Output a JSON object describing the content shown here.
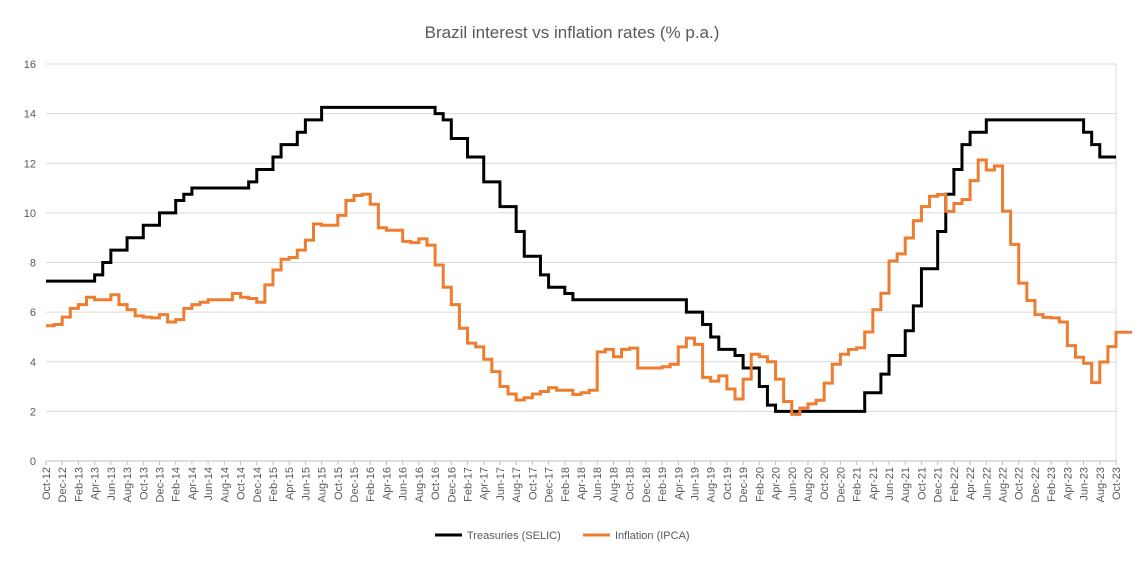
{
  "chart_data": {
    "type": "line",
    "step": true,
    "title": "Brazil interest vs inflation rates (% p.a.)",
    "xlabel": "",
    "ylabel": "",
    "ylim": [
      0,
      16
    ],
    "yticks": [
      0,
      2,
      4,
      6,
      8,
      10,
      12,
      14,
      16
    ],
    "grid": true,
    "legend_position": "bottom-center",
    "x_start": "Oct-12",
    "x_end": "Oct-23",
    "x_tick_labels": [
      "Oct-12",
      "Dec-12",
      "Feb-13",
      "Apr-13",
      "Jun-13",
      "Aug-13",
      "Oct-13",
      "Dec-13",
      "Feb-14",
      "Apr-14",
      "Jun-14",
      "Aug-14",
      "Oct-14",
      "Dec-14",
      "Feb-15",
      "Apr-15",
      "Jun-15",
      "Aug-15",
      "Oct-15",
      "Dec-15",
      "Feb-16",
      "Apr-16",
      "Jun-16",
      "Aug-16",
      "Oct-16",
      "Dec-16",
      "Feb-17",
      "Apr-17",
      "Jun-17",
      "Aug-17",
      "Oct-17",
      "Dec-17",
      "Feb-18",
      "Apr-18",
      "Jun-18",
      "Aug-18",
      "Oct-18",
      "Dec-18",
      "Feb-19",
      "Apr-19",
      "Jun-19",
      "Aug-19",
      "Oct-19",
      "Dec-19",
      "Feb-20",
      "Apr-20",
      "Jun-20",
      "Aug-20",
      "Oct-20",
      "Dec-20",
      "Feb-21",
      "Apr-21",
      "Jun-21",
      "Aug-21",
      "Oct-21",
      "Dec-21",
      "Feb-22",
      "Apr-22",
      "Jun-22",
      "Aug-22",
      "Oct-22",
      "Dec-22",
      "Feb-23",
      "Apr-23",
      "Jun-23",
      "Aug-23",
      "Oct-23"
    ],
    "series": [
      {
        "name": "Treasuries (SELIC)",
        "color": "#000000",
        "points": [
          [
            0,
            7.25
          ],
          [
            6,
            7.5
          ],
          [
            7,
            8.0
          ],
          [
            8,
            8.5
          ],
          [
            10,
            9.0
          ],
          [
            12,
            9.5
          ],
          [
            14,
            10.0
          ],
          [
            16,
            10.5
          ],
          [
            17,
            10.75
          ],
          [
            18,
            11.0
          ],
          [
            25,
            11.25
          ],
          [
            26,
            11.75
          ],
          [
            28,
            12.25
          ],
          [
            29,
            12.75
          ],
          [
            31,
            13.25
          ],
          [
            32,
            13.75
          ],
          [
            34,
            14.25
          ],
          [
            48,
            14.0
          ],
          [
            49,
            13.75
          ],
          [
            50,
            13.0
          ],
          [
            52,
            12.25
          ],
          [
            54,
            11.25
          ],
          [
            56,
            10.25
          ],
          [
            58,
            9.25
          ],
          [
            59,
            8.25
          ],
          [
            61,
            7.5
          ],
          [
            62,
            7.0
          ],
          [
            64,
            6.75
          ],
          [
            65,
            6.5
          ],
          [
            79,
            6.0
          ],
          [
            81,
            5.5
          ],
          [
            82,
            5.0
          ],
          [
            83,
            4.5
          ],
          [
            85,
            4.25
          ],
          [
            86,
            3.75
          ],
          [
            88,
            3.0
          ],
          [
            89,
            2.25
          ],
          [
            90,
            2.0
          ],
          [
            101,
            2.75
          ],
          [
            103,
            3.5
          ],
          [
            104,
            4.25
          ],
          [
            106,
            5.25
          ],
          [
            107,
            6.25
          ],
          [
            108,
            7.75
          ],
          [
            110,
            9.25
          ],
          [
            111,
            10.75
          ],
          [
            112,
            11.75
          ],
          [
            113,
            12.75
          ],
          [
            114,
            13.25
          ],
          [
            116,
            13.75
          ],
          [
            128,
            13.25
          ],
          [
            129,
            12.75
          ],
          [
            130,
            12.25
          ]
        ]
      },
      {
        "name": "Inflation (IPCA)",
        "color": "#ED7D31",
        "points": [
          [
            0,
            5.45
          ],
          [
            1,
            5.5
          ],
          [
            2,
            5.8
          ],
          [
            3,
            6.15
          ],
          [
            4,
            6.3
          ],
          [
            5,
            6.6
          ],
          [
            6,
            6.5
          ],
          [
            8,
            6.7
          ],
          [
            9,
            6.3
          ],
          [
            10,
            6.1
          ],
          [
            11,
            5.85
          ],
          [
            12,
            5.8
          ],
          [
            13,
            5.77
          ],
          [
            14,
            5.9
          ],
          [
            15,
            5.6
          ],
          [
            16,
            5.7
          ],
          [
            17,
            6.15
          ],
          [
            18,
            6.3
          ],
          [
            19,
            6.4
          ],
          [
            20,
            6.5
          ],
          [
            22,
            6.5
          ],
          [
            23,
            6.75
          ],
          [
            24,
            6.6
          ],
          [
            25,
            6.55
          ],
          [
            26,
            6.4
          ],
          [
            27,
            7.1
          ],
          [
            28,
            7.7
          ],
          [
            29,
            8.13
          ],
          [
            30,
            8.2
          ],
          [
            31,
            8.5
          ],
          [
            32,
            8.9
          ],
          [
            33,
            9.55
          ],
          [
            34,
            9.5
          ],
          [
            35,
            9.5
          ],
          [
            36,
            9.9
          ],
          [
            37,
            10.5
          ],
          [
            38,
            10.7
          ],
          [
            39,
            10.75
          ],
          [
            40,
            10.35
          ],
          [
            41,
            9.4
          ],
          [
            42,
            9.3
          ],
          [
            44,
            8.85
          ],
          [
            45,
            8.8
          ],
          [
            46,
            8.95
          ],
          [
            47,
            8.7
          ],
          [
            48,
            7.9
          ],
          [
            49,
            7.0
          ],
          [
            50,
            6.3
          ],
          [
            51,
            5.35
          ],
          [
            52,
            4.75
          ],
          [
            53,
            4.6
          ],
          [
            54,
            4.1
          ],
          [
            55,
            3.6
          ],
          [
            56,
            3.0
          ],
          [
            57,
            2.7
          ],
          [
            58,
            2.46
          ],
          [
            59,
            2.55
          ],
          [
            60,
            2.7
          ],
          [
            61,
            2.8
          ],
          [
            62,
            2.95
          ],
          [
            63,
            2.85
          ],
          [
            65,
            2.68
          ],
          [
            66,
            2.75
          ],
          [
            67,
            2.85
          ],
          [
            68,
            4.4
          ],
          [
            69,
            4.5
          ],
          [
            70,
            4.2
          ],
          [
            71,
            4.5
          ],
          [
            72,
            4.55
          ],
          [
            73,
            3.75
          ],
          [
            76,
            3.8
          ],
          [
            77,
            3.9
          ],
          [
            78,
            4.6
          ],
          [
            79,
            4.95
          ],
          [
            80,
            4.7
          ],
          [
            81,
            3.37
          ],
          [
            82,
            3.22
          ],
          [
            83,
            3.43
          ],
          [
            84,
            2.9
          ],
          [
            85,
            2.5
          ],
          [
            86,
            3.3
          ],
          [
            87,
            4.3
          ],
          [
            88,
            4.2
          ],
          [
            89,
            4.0
          ],
          [
            90,
            3.3
          ],
          [
            91,
            2.4
          ],
          [
            92,
            1.88
          ],
          [
            93,
            2.13
          ],
          [
            94,
            2.3
          ],
          [
            95,
            2.45
          ],
          [
            96,
            3.14
          ],
          [
            97,
            3.9
          ],
          [
            98,
            4.3
          ],
          [
            99,
            4.5
          ],
          [
            100,
            4.56
          ],
          [
            101,
            5.2
          ],
          [
            102,
            6.1
          ],
          [
            103,
            6.76
          ],
          [
            104,
            8.06
          ],
          [
            105,
            8.35
          ],
          [
            106,
            8.99
          ],
          [
            107,
            9.68
          ],
          [
            108,
            10.25
          ],
          [
            109,
            10.67
          ],
          [
            110,
            10.74
          ],
          [
            111,
            10.06
          ],
          [
            112,
            10.38
          ],
          [
            113,
            10.54
          ],
          [
            114,
            11.3
          ],
          [
            115,
            12.13
          ],
          [
            116,
            11.73
          ],
          [
            117,
            11.89
          ],
          [
            118,
            10.07
          ],
          [
            119,
            8.73
          ],
          [
            120,
            7.17
          ],
          [
            121,
            6.47
          ],
          [
            122,
            5.9
          ],
          [
            123,
            5.79
          ],
          [
            124,
            5.77
          ],
          [
            125,
            5.6
          ],
          [
            126,
            4.65
          ],
          [
            127,
            4.18
          ],
          [
            128,
            3.94
          ],
          [
            129,
            3.16
          ],
          [
            130,
            3.99
          ],
          [
            131,
            4.61
          ],
          [
            132,
            5.19
          ],
          [
            134,
            5.19
          ]
        ]
      }
    ]
  }
}
